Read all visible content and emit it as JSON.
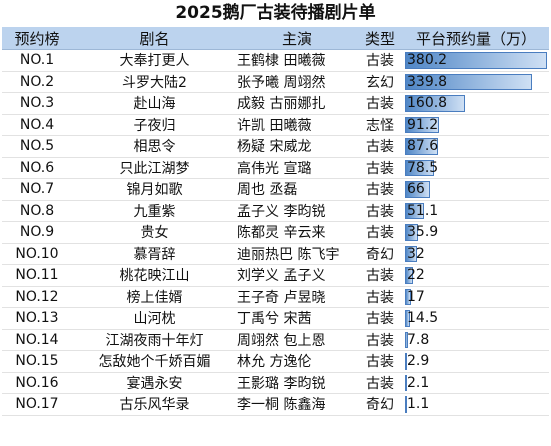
{
  "title": "2025鹅厂古装待播剧片单",
  "headers": [
    "预约榜",
    "剧名",
    "主演",
    "类型",
    "平台预约量（万）"
  ],
  "max_value": 380.2,
  "rows": [
    {
      "rank": "NO.1",
      "name": "大奉打更人",
      "cast": "王鹤棣 田曦薇",
      "genre": "古装",
      "value": 380.2,
      "value_text": "380.2"
    },
    {
      "rank": "NO.2",
      "name": "斗罗大陆2",
      "cast": "张予曦 周翊然",
      "genre": "玄幻",
      "value": 339.8,
      "value_text": "339.8"
    },
    {
      "rank": "NO.3",
      "name": "赴山海",
      "cast": "成毅 古丽娜扎",
      "genre": "古装",
      "value": 160.8,
      "value_text": "160.8"
    },
    {
      "rank": "NO.4",
      "name": "子夜归",
      "cast": "许凯 田曦薇",
      "genre": "志怪",
      "value": 91.2,
      "value_text": "91.2"
    },
    {
      "rank": "NO.5",
      "name": "相思令",
      "cast": "杨疑 宋威龙",
      "genre": "古装",
      "value": 87.6,
      "value_text": "87.6"
    },
    {
      "rank": "NO.6",
      "name": "只此江湖梦",
      "cast": "高伟光 宣璐",
      "genre": "古装",
      "value": 78.5,
      "value_text": "78.5"
    },
    {
      "rank": "NO.7",
      "name": "锦月如歌",
      "cast": "周也 丞磊",
      "genre": "古装",
      "value": 66,
      "value_text": "66"
    },
    {
      "rank": "NO.8",
      "name": "九重紫",
      "cast": "孟子义 李昀锐",
      "genre": "古装",
      "value": 51.1,
      "value_text": "51.1"
    },
    {
      "rank": "NO.9",
      "name": "贵女",
      "cast": "陈都灵 辛云来",
      "genre": "古装",
      "value": 35.9,
      "value_text": "35.9"
    },
    {
      "rank": "NO.10",
      "name": "慕胥辞",
      "cast": "迪丽热巴 陈飞宇",
      "genre": "奇幻",
      "value": 32,
      "value_text": "32"
    },
    {
      "rank": "NO.11",
      "name": "桃花映江山",
      "cast": "刘学义 孟子义",
      "genre": "古装",
      "value": 22,
      "value_text": "22"
    },
    {
      "rank": "NO.12",
      "name": "榜上佳婿",
      "cast": "王子奇 卢昱晓",
      "genre": "古装",
      "value": 17,
      "value_text": "17"
    },
    {
      "rank": "NO.13",
      "name": "山河枕",
      "cast": "丁禹兮 宋茜",
      "genre": "古装",
      "value": 14.5,
      "value_text": "14.5"
    },
    {
      "rank": "NO.14",
      "name": "江湖夜雨十年灯",
      "cast": "周翊然 包上恩",
      "genre": "古装",
      "value": 7.8,
      "value_text": "7.8"
    },
    {
      "rank": "NO.15",
      "name": "怎敌她个千娇百媚",
      "cast": "林允 方逸伦",
      "genre": "古装",
      "value": 2.9,
      "value_text": "2.9"
    },
    {
      "rank": "NO.16",
      "name": "宴遇永安",
      "cast": "王影璐 李昀锐",
      "genre": "古装",
      "value": 2.1,
      "value_text": "2.1"
    },
    {
      "rank": "NO.17",
      "name": "古乐风华录",
      "cast": "李一桐 陈鑫海",
      "genre": "奇幻",
      "value": 1.1,
      "value_text": "1.1"
    }
  ]
}
